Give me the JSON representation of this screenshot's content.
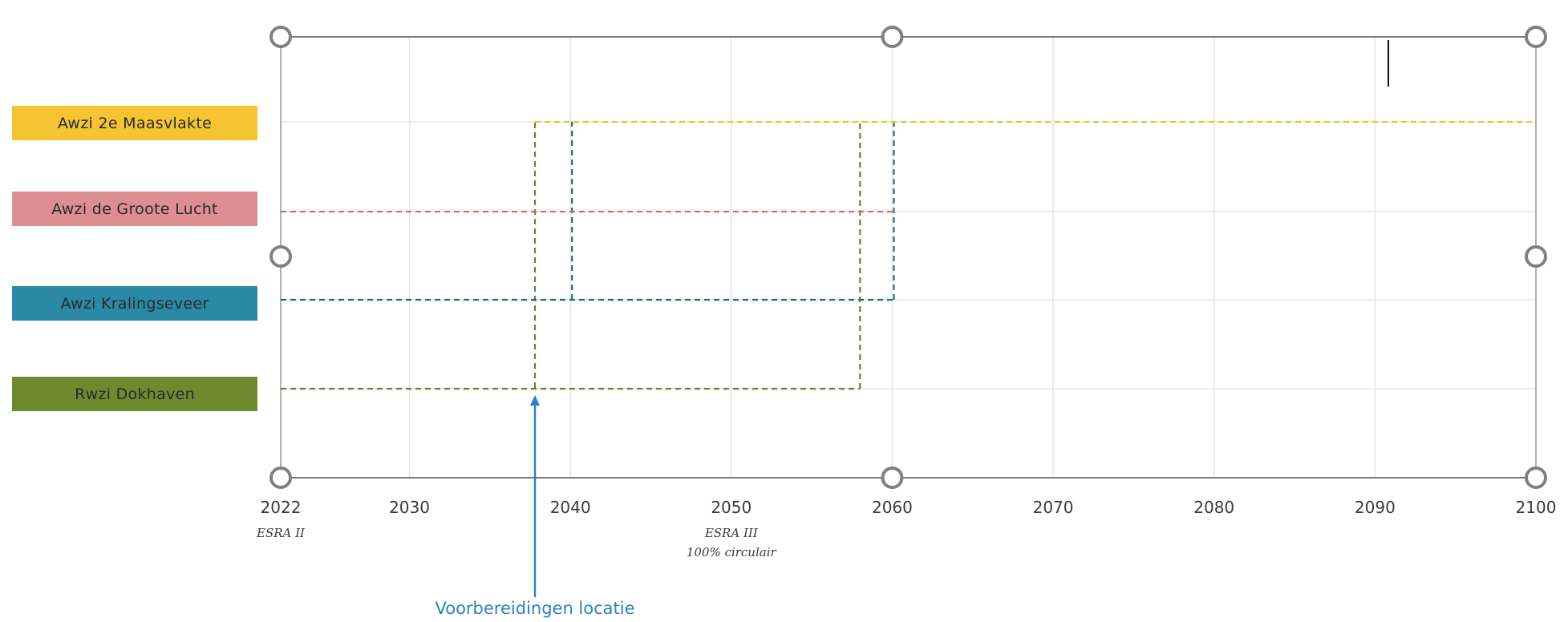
{
  "chart_data": {
    "type": "timeline",
    "x_range": [
      2022,
      2100
    ],
    "x_ticks": [
      2022,
      2030,
      2040,
      2050,
      2060,
      2070,
      2080,
      2090,
      2100
    ],
    "grid": true,
    "rows": [
      {
        "label": "Awzi 2e Maasvlakte",
        "color": "#f5c430",
        "line_color": "#d8d020",
        "text_color": "#2a2a2a"
      },
      {
        "label": "Awzi de Groote Lucht",
        "color": "#dd8e90",
        "line_color": "#d86a78",
        "text_color": "#2a2a2a"
      },
      {
        "label": "Awzi Kralingseveer",
        "color": "#2a8aa6",
        "line_color": "#1f6f7c",
        "text_color": "#2a2a2a"
      },
      {
        "label": "Rwzi Dokhaven",
        "color": "#6f8a2e",
        "line_color": "#7a7a3a",
        "text_color": "#2a2a2a"
      }
    ],
    "flows": [
      {
        "row": 3,
        "segments": [
          [
            2022,
            2058
          ],
          [
            2037.8,
            2058
          ]
        ],
        "vertical": [
          2037.8,
          2058
        ]
      },
      {
        "row": 2,
        "segments": [
          [
            2022,
            2060.1
          ]
        ],
        "vertical": [
          2040.1,
          2060.1
        ]
      },
      {
        "row": 1,
        "segments": [
          [
            2022,
            2060.2
          ]
        ],
        "vertical": [
          2060.2
        ]
      },
      {
        "row": 0,
        "segments": [
          [
            2037.8,
            2100
          ]
        ]
      }
    ],
    "milestones": [
      {
        "year": 2022,
        "lines": [
          "ESRA II"
        ]
      },
      {
        "year": 2050,
        "lines": [
          "ESRA III",
          "100% circulair"
        ]
      }
    ],
    "annotations": [
      {
        "year": 2037.8,
        "text": "Voorbereidingen locatie"
      }
    ]
  }
}
